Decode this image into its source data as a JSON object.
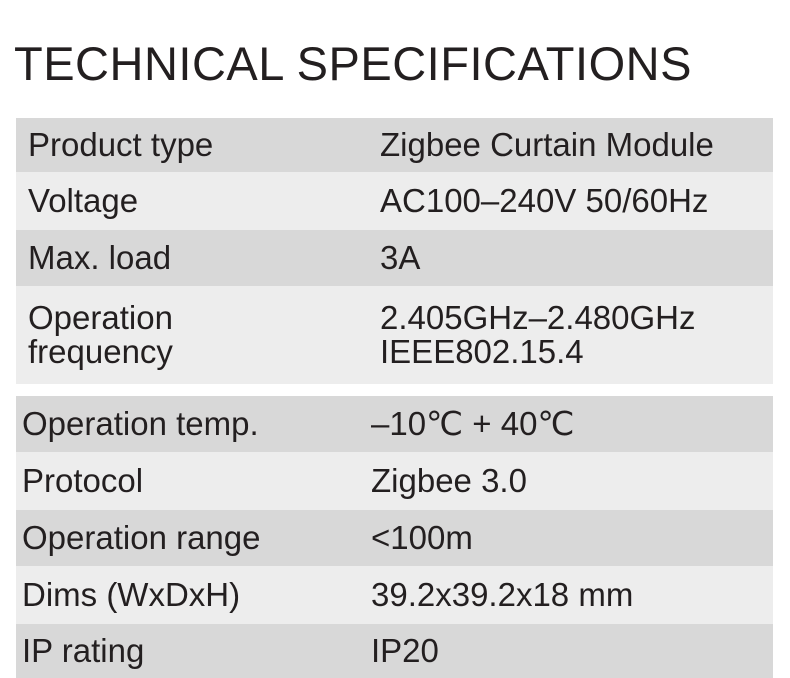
{
  "header": {
    "title": "TECHNICAL SPECIFICATIONS"
  },
  "tables": [
    {
      "rows": [
        {
          "label": [
            "Product type"
          ],
          "value": [
            "Zigbee Curtain Module"
          ]
        },
        {
          "label": [
            "Voltage"
          ],
          "value": [
            "AC100–240V 50/60Hz"
          ]
        },
        {
          "label": [
            "Max. load"
          ],
          "value": [
            "3A"
          ]
        },
        {
          "label": [
            "Operation",
            "frequency"
          ],
          "value": [
            "2.405GHz–2.480GHz",
            "IEEE802.15.4"
          ]
        }
      ]
    },
    {
      "rows": [
        {
          "label": [
            "Operation temp."
          ],
          "value": [
            "–10℃ + 40℃"
          ]
        },
        {
          "label": [
            "Protocol"
          ],
          "value": [
            "Zigbee 3.0"
          ]
        },
        {
          "label": [
            "Operation range"
          ],
          "value": [
            "<100m"
          ]
        },
        {
          "label": [
            "Dims (WxDxH)"
          ],
          "value": [
            "39.2x39.2x18 mm"
          ]
        },
        {
          "label": [
            "IP rating"
          ],
          "value": [
            "IP20"
          ]
        }
      ]
    }
  ]
}
